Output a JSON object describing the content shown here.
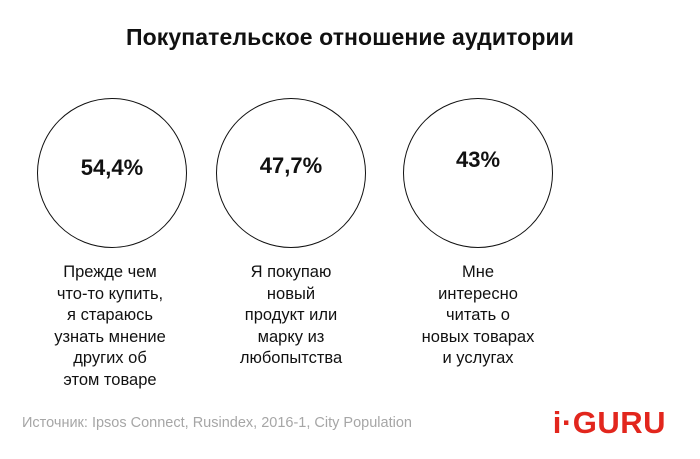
{
  "chart_data": {
    "type": "infographic",
    "title": "Покупательское отношение аудитории",
    "items": [
      {
        "value": "54,4%",
        "description": "Прежде чем\nчто-то купить,\nя стараюсь\nузнать мнение\nдругих об\nэтом товаре"
      },
      {
        "value": "47,7%",
        "description": "Я покупаю\nновый\nпродукт или\nмарку из\nлюбопытства"
      },
      {
        "value": "43%",
        "description": "Мне\nинтересно\nчитать о\nновых товарах\nи услугах"
      }
    ]
  },
  "source": "Источник: Ipsos Connect, Rusindex, 2016-1, City Population",
  "logo": "i·GURU",
  "colors": {
    "text": "#111111",
    "source": "#a6a6a6",
    "logo": "#e2261d"
  }
}
